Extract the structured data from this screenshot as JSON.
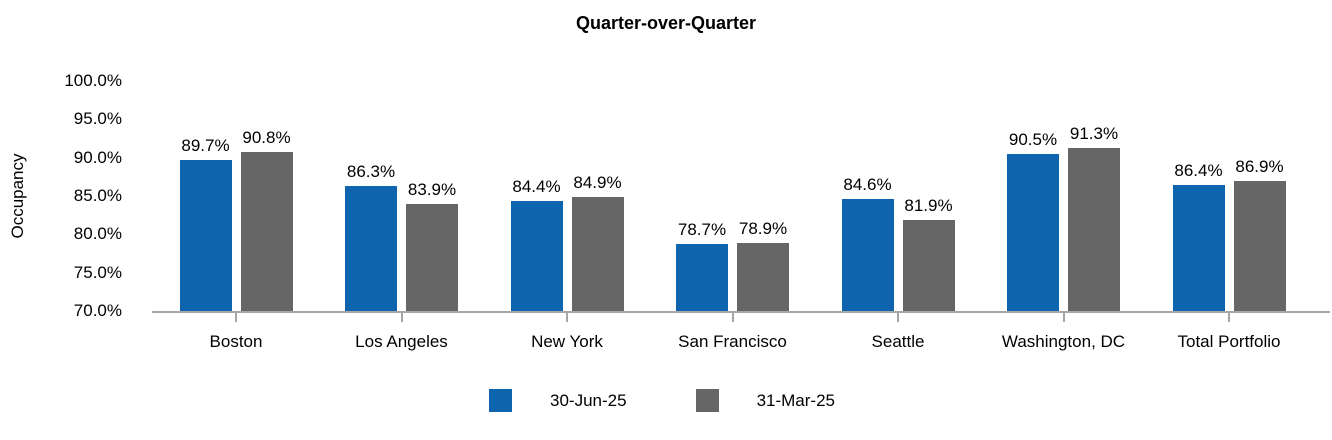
{
  "title": "Quarter-over-Quarter",
  "chart_data": {
    "type": "bar",
    "title": "Quarter-over-Quarter",
    "xlabel": "",
    "ylabel": "Occupancy",
    "ylim": [
      70,
      100
    ],
    "grid": false,
    "legend_position": "bottom",
    "ytick_values": [
      100,
      95,
      90,
      85,
      80,
      75,
      70
    ],
    "ytick_labels": [
      "100.0%",
      "95.0%",
      "90.0%",
      "85.0%",
      "80.0%",
      "75.0%",
      "70.0%"
    ],
    "categories": [
      "Boston",
      "Los Angeles",
      "New York",
      "San Francisco",
      "Seattle",
      "Washington, DC",
      "Total Portfolio"
    ],
    "series": [
      {
        "name": "30-Jun-25",
        "color": "#0E65AE",
        "values": [
          89.7,
          86.3,
          84.4,
          78.7,
          84.6,
          90.5,
          86.4
        ],
        "data_labels": [
          "89.7%",
          "86.3%",
          "84.4%",
          "78.7%",
          "84.6%",
          "90.5%",
          "86.4%"
        ]
      },
      {
        "name": "31-Mar-25",
        "color": "#666666",
        "values": [
          90.8,
          83.9,
          84.9,
          78.9,
          81.9,
          91.3,
          86.9
        ],
        "data_labels": [
          "90.8%",
          "83.9%",
          "84.9%",
          "78.9%",
          "81.9%",
          "91.3%",
          "86.9%"
        ]
      }
    ]
  },
  "colors": {
    "background": "#FFFFFF",
    "axis": "#A6A6A6",
    "text": "#000000"
  }
}
